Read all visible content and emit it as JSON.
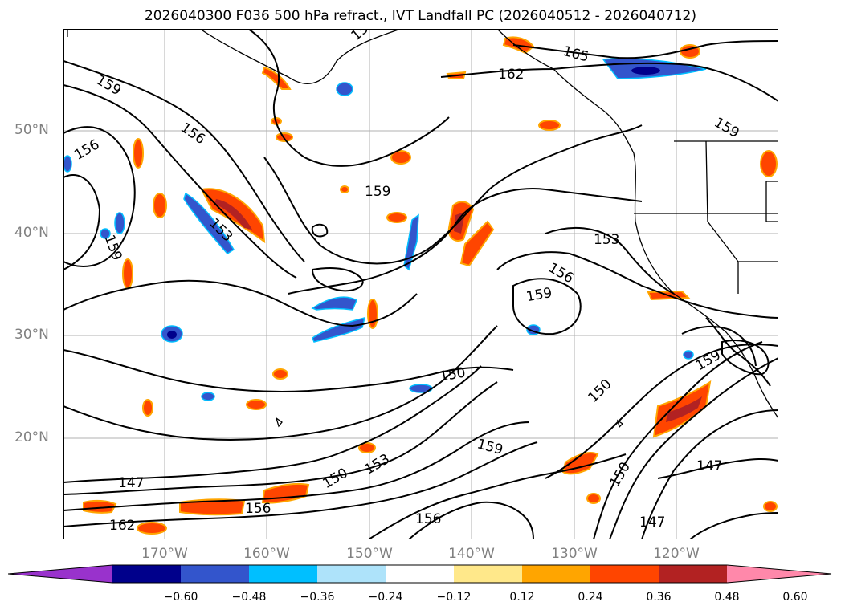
{
  "title": "2026040300 F036 500 hPa refract., IVT Landfall PC (2026040512 - 2026040712)",
  "lat_labels": [
    "50°N",
    "40°N",
    "30°N",
    "20°N"
  ],
  "lon_labels": [
    "170°W",
    "160°W",
    "150°W",
    "140°W",
    "130°W",
    "120°W"
  ],
  "contour_labels": [
    "159",
    "156",
    "159",
    "153",
    "159",
    "156",
    "159",
    "162",
    "165",
    "159",
    "153",
    "156",
    "159",
    "150",
    "150",
    "159",
    "147",
    "150",
    "153",
    "156",
    "162",
    "156",
    "150",
    "147",
    "147"
  ],
  "colorbar": {
    "ticks": [
      "−0.60",
      "−0.48",
      "−0.36",
      "−0.24",
      "−0.12",
      "0.12",
      "0.24",
      "0.36",
      "0.48",
      "0.60"
    ],
    "colors": [
      "#9932cc",
      "#00008b",
      "#3355cc",
      "#00bfff",
      "#aee3fa",
      "#ffffff",
      "#ffe88a",
      "#ffa500",
      "#ff4500",
      "#b22222",
      "#ff88aa"
    ]
  }
}
